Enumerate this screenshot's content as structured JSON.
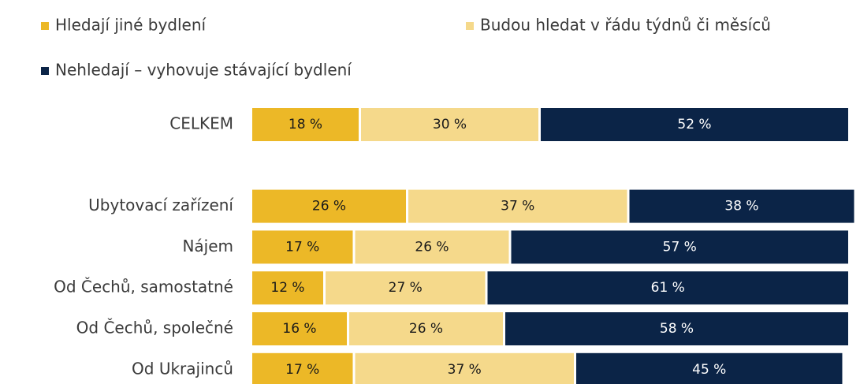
{
  "chart_data": {
    "type": "bar",
    "orientation": "horizontal",
    "stacked": true,
    "categories": [
      "CELKEM",
      null,
      "Ubytovací zařízení",
      "Nájem",
      "Od Čechů, samostatné",
      "Od Čechů, společné",
      "Od Ukrajinců"
    ],
    "series": [
      {
        "name": "Hledají jiné bydlení",
        "color": "#ecb827",
        "values": [
          18,
          null,
          26,
          17,
          12,
          16,
          17
        ],
        "value_labels": [
          "18 %",
          null,
          "26 %",
          "17 %",
          "12 %",
          "16 %",
          "17 %"
        ]
      },
      {
        "name": "Budou hledat v řádu týdnů či měsíců",
        "color": "#f5d98b",
        "values": [
          30,
          null,
          37,
          26,
          27,
          26,
          37
        ],
        "value_labels": [
          "30 %",
          null,
          "37 %",
          "26 %",
          "27 %",
          "26 %",
          "37 %"
        ]
      },
      {
        "name": "Nehledají – vyhovuje stávající bydlení",
        "color": "#0b2447",
        "values": [
          52,
          null,
          38,
          57,
          61,
          58,
          45
        ],
        "value_labels": [
          "52 %",
          null,
          "38 %",
          "57 %",
          "61 %",
          "58 %",
          "45 %"
        ]
      }
    ]
  }
}
